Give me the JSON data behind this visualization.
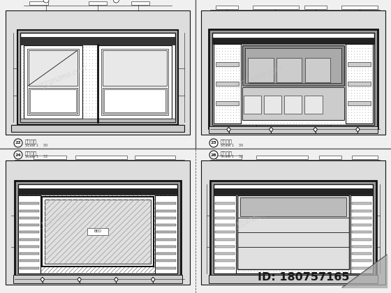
{
  "bg_color": "#f0f0f0",
  "white": "#ffffff",
  "black": "#111111",
  "dark": "#222222",
  "med_gray": "#aaaaaa",
  "light_gray": "#dddddd",
  "dot_color": "#555555",
  "hatch_color": "#666666",
  "watermark": "知末网znzmo.com",
  "id_text": "ID: 180757165",
  "panel_labels": [
    "22",
    "23",
    "24",
    "26"
  ],
  "panel_titles": [
    "卧室立件",
    "卧室立力",
    "卧室立厅",
    "卧室立面"
  ],
  "panel_scales": [
    "Scale 1    30",
    "Scale 1    30",
    "Scale 1    32",
    "Scale 1    32"
  ],
  "separator_color": "#888888"
}
